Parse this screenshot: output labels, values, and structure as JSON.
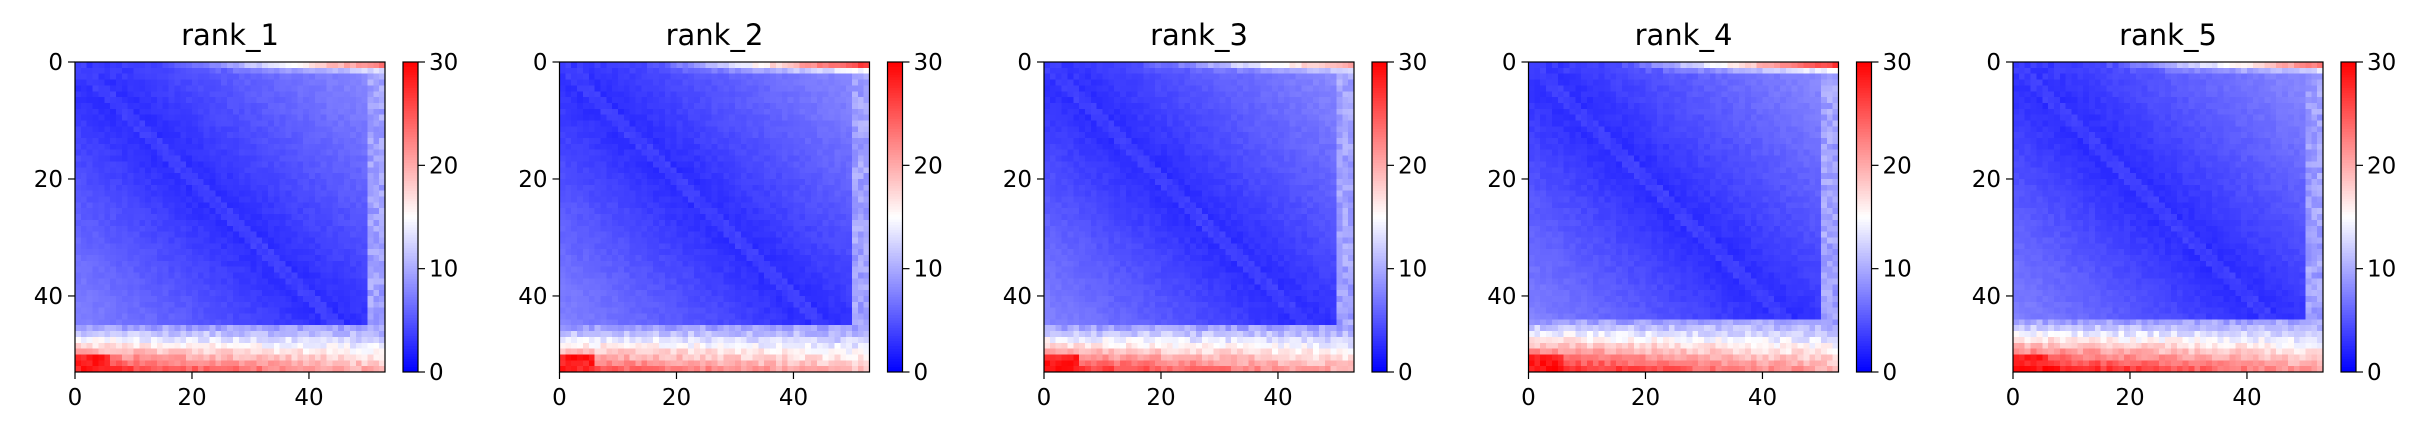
{
  "chart_data": [
    {
      "type": "heatmap",
      "title": "rank_1",
      "grid_size": 53,
      "xlim": [
        0,
        53
      ],
      "ylim": [
        53,
        0
      ],
      "x_ticks": [
        0,
        20,
        40
      ],
      "y_ticks": [
        0,
        20,
        40
      ],
      "colorbar": {
        "min": 0,
        "max": 30,
        "ticks": [
          0,
          10,
          20,
          30
        ]
      },
      "pattern": {
        "min_value": 2,
        "diag_level": 3,
        "corner_value": 30,
        "band_start": 45,
        "band_peak": 26,
        "top_edge_peak": 22
      }
    },
    {
      "type": "heatmap",
      "title": "rank_2",
      "grid_size": 53,
      "xlim": [
        0,
        53
      ],
      "ylim": [
        53,
        0
      ],
      "x_ticks": [
        0,
        20,
        40
      ],
      "y_ticks": [
        0,
        20,
        40
      ],
      "colorbar": {
        "min": 0,
        "max": 30,
        "ticks": [
          0,
          10,
          20,
          30
        ]
      },
      "pattern": {
        "min_value": 2,
        "diag_level": 3,
        "corner_value": 30,
        "band_start": 45,
        "band_peak": 24,
        "top_edge_peak": 26
      }
    },
    {
      "type": "heatmap",
      "title": "rank_3",
      "grid_size": 53,
      "xlim": [
        0,
        53
      ],
      "ylim": [
        53,
        0
      ],
      "x_ticks": [
        0,
        20,
        40
      ],
      "y_ticks": [
        0,
        20,
        40
      ],
      "colorbar": {
        "min": 0,
        "max": 30,
        "ticks": [
          0,
          10,
          20,
          30
        ]
      },
      "pattern": {
        "min_value": 2,
        "diag_level": 3,
        "corner_value": 30,
        "band_start": 45,
        "band_peak": 26,
        "top_edge_peak": 20
      }
    },
    {
      "type": "heatmap",
      "title": "rank_4",
      "grid_size": 53,
      "xlim": [
        0,
        53
      ],
      "ylim": [
        53,
        0
      ],
      "x_ticks": [
        0,
        20,
        40
      ],
      "y_ticks": [
        0,
        20,
        40
      ],
      "colorbar": {
        "min": 0,
        "max": 30,
        "ticks": [
          0,
          10,
          20,
          30
        ]
      },
      "pattern": {
        "min_value": 2,
        "diag_level": 3,
        "corner_value": 30,
        "band_start": 44,
        "band_peak": 27,
        "top_edge_peak": 26
      }
    },
    {
      "type": "heatmap",
      "title": "rank_5",
      "grid_size": 53,
      "xlim": [
        0,
        53
      ],
      "ylim": [
        53,
        0
      ],
      "x_ticks": [
        0,
        20,
        40
      ],
      "y_ticks": [
        0,
        20,
        40
      ],
      "colorbar": {
        "min": 0,
        "max": 30,
        "ticks": [
          0,
          10,
          20,
          30
        ]
      },
      "pattern": {
        "min_value": 2,
        "diag_level": 3,
        "corner_value": 30,
        "band_start": 44,
        "band_peak": 28,
        "top_edge_peak": 22
      }
    }
  ],
  "colormap": {
    "name": "bwr",
    "low_color": "#0000ff",
    "mid_color": "#ffffff",
    "high_color": "#ff0000"
  }
}
